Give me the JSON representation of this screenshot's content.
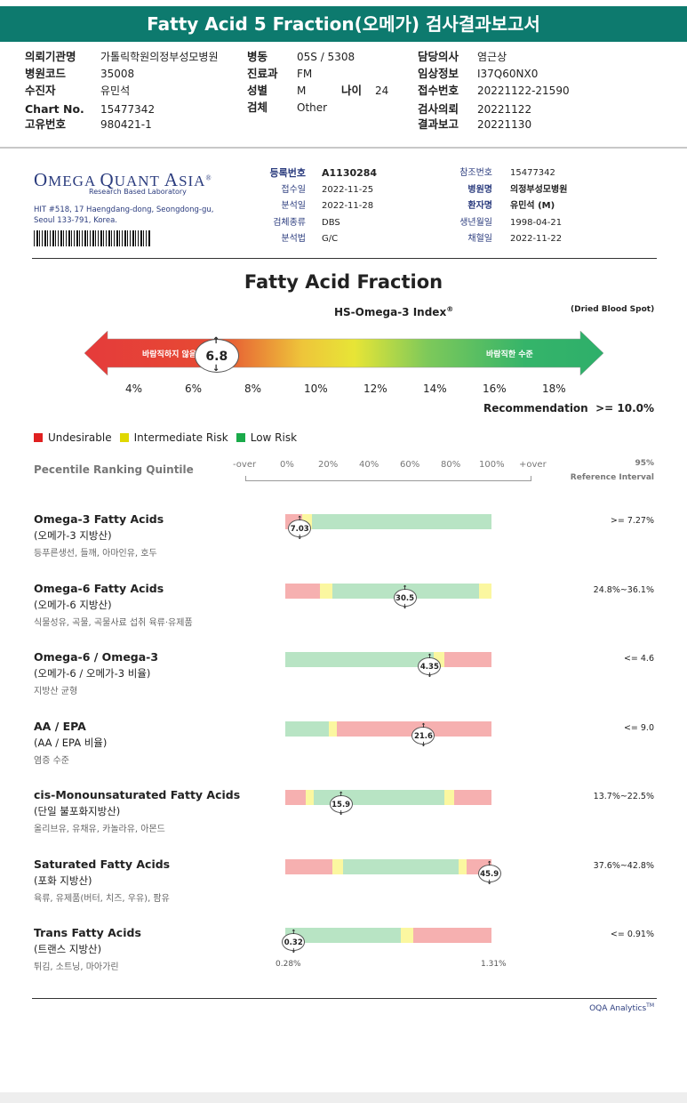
{
  "header": {
    "title": "Fatty Acid 5 Fraction(오메가) 검사결과보고서",
    "fields": [
      {
        "label": "의뢰기관명",
        "value": "가톨릭학원의정부성모병원"
      },
      {
        "label": "병원코드",
        "value": "35008"
      },
      {
        "label": "수진자",
        "value": "유민석"
      },
      {
        "label": "Chart No.",
        "value": "15477342"
      },
      {
        "label": "고유번호",
        "value": "980421-1"
      },
      {
        "label": "병동",
        "value": "05S / 5308"
      },
      {
        "label": "진료과",
        "value": "FM"
      },
      {
        "label": "성별",
        "value": "M"
      },
      {
        "label": "나이",
        "value": "24"
      },
      {
        "label": "검체",
        "value": "Other"
      },
      {
        "label": "담당의사",
        "value": "염근상"
      },
      {
        "label": "임상정보",
        "value": "I37Q60NX0"
      },
      {
        "label": "접수번호",
        "value": "20221122-21590"
      },
      {
        "label": "검사의뢰",
        "value": "20221122"
      },
      {
        "label": "결과보고",
        "value": "20221130"
      }
    ]
  },
  "lab": {
    "logo_a": "O",
    "logo_b": "MEGA ",
    "logo_c": "Q",
    "logo_d": "UANT ",
    "logo_e": "A",
    "logo_f": "SIA",
    "logo_reg": "®",
    "tagline": "Research Based Laboratory",
    "address": "HIT #518, 17 Haengdang-dong, Seongdong-gu, Seoul 133-791, Korea."
  },
  "meta_left": [
    {
      "label": "등록번호",
      "value": "A1130284"
    },
    {
      "label": "접수일",
      "value": "2022-11-25"
    },
    {
      "label": "분석일",
      "value": "2022-11-28"
    },
    {
      "label": "검체종류",
      "value": "DBS"
    },
    {
      "label": "분석법",
      "value": "G/C"
    }
  ],
  "meta_right": [
    {
      "label": "참조번호",
      "value": "15477342"
    },
    {
      "label": "병원명",
      "value": "의정부성모병원"
    },
    {
      "label": "환자명",
      "value": "유민석 (M)"
    },
    {
      "label": "생년월일",
      "value": "1998-04-21"
    },
    {
      "label": "채혈일",
      "value": "2022-11-22"
    }
  ],
  "report": {
    "title": "Fatty Acid Fraction",
    "index_name": "HS-Omega-3 Index",
    "index_reg": "®",
    "sample": "(Dried Blood Spot)",
    "gauge_left": "바람직하지 않음",
    "gauge_right": "바람직한 수준",
    "gauge_value": "6.8",
    "gauge_value_num": 6.8,
    "gauge_ticks": [
      "4%",
      "6%",
      "8%",
      "10%",
      "12%",
      "14%",
      "16%",
      "18%"
    ],
    "recommendation_label": "Recommendation",
    "recommendation_value": ">= 10.0%"
  },
  "legend": [
    {
      "label": "Undesirable",
      "color": "#e02020"
    },
    {
      "label": "Intermediate Risk",
      "color": "#e0d800"
    },
    {
      "label": "Low Risk",
      "color": "#1aaa4a"
    }
  ],
  "scale": {
    "heading": "Pecentile Ranking Quintile",
    "labels": [
      "-over",
      "0%",
      "20%",
      "40%",
      "60%",
      "80%",
      "100%",
      "+over"
    ],
    "ref_line1": "95%",
    "ref_line2": "Reference Interval"
  },
  "colors": {
    "red": "#f6b0b0",
    "yellow": "#fbf7a0",
    "green": "#b8e4c4"
  },
  "rows": [
    {
      "title": "Omega-3 Fatty Acids",
      "sub": "(오메가-3 지방산)",
      "note": "등푸른생선, 들깨, 아마인유, 호두",
      "ref": ">= 7.27%",
      "value": "7.03",
      "segments": [
        {
          "c": "red",
          "w": 0.08
        },
        {
          "c": "yellow",
          "w": 0.05
        },
        {
          "c": "green",
          "w": 0.87
        }
      ],
      "position": 0.07
    },
    {
      "title": "Omega-6 Fatty Acids",
      "sub": "(오메가-6 지방산)",
      "note": "식물성유, 곡물, 곡물사료 섭취 육류·유제품",
      "ref": "24.8%~36.1%",
      "value": "30.5",
      "segments": [
        {
          "c": "red",
          "w": 0.17
        },
        {
          "c": "yellow",
          "w": 0.06
        },
        {
          "c": "green",
          "w": 0.71
        },
        {
          "c": "yellow",
          "w": 0.06
        }
      ],
      "position": 0.58
    },
    {
      "title": "Omega-6 / Omega-3",
      "sub": "(오메가-6 / 오메가-3 비율)",
      "note": "지방산 균형",
      "ref": "<= 4.6",
      "value": "4.35",
      "segments": [
        {
          "c": "green",
          "w": 0.72
        },
        {
          "c": "yellow",
          "w": 0.05
        },
        {
          "c": "red",
          "w": 0.23
        }
      ],
      "position": 0.7
    },
    {
      "title": "AA / EPA",
      "sub": "(AA / EPA 비율)",
      "note": "염증 수준",
      "ref": "<= 9.0",
      "value": "21.6",
      "segments": [
        {
          "c": "green",
          "w": 0.21
        },
        {
          "c": "yellow",
          "w": 0.04
        },
        {
          "c": "red",
          "w": 0.75
        }
      ],
      "position": 0.67
    },
    {
      "title": "cis-Monounsaturated Fatty Acids",
      "sub": "(단일 불포화지방산)",
      "note": "올리브유, 유채유, 카놀라유, 아몬드",
      "ref": "13.7%~22.5%",
      "value": "15.9",
      "segments": [
        {
          "c": "red",
          "w": 0.1
        },
        {
          "c": "yellow",
          "w": 0.04
        },
        {
          "c": "green",
          "w": 0.63
        },
        {
          "c": "yellow",
          "w": 0.05
        },
        {
          "c": "red",
          "w": 0.18
        }
      ],
      "position": 0.27
    },
    {
      "title": "Saturated Fatty Acids",
      "sub": "(포화 지방산)",
      "note": "육류, 유제품(버터, 치즈, 우유), 팜유",
      "ref": "37.6%~42.8%",
      "value": "45.9",
      "segments": [
        {
          "c": "red",
          "w": 0.23
        },
        {
          "c": "yellow",
          "w": 0.05
        },
        {
          "c": "green",
          "w": 0.56
        },
        {
          "c": "yellow",
          "w": 0.04
        },
        {
          "c": "red",
          "w": 0.12
        }
      ],
      "position": 0.99
    },
    {
      "title": "Trans Fatty Acids",
      "sub": "(트랜스 지방산)",
      "note": "튀김, 소트닝, 마아가린",
      "ref": "<= 0.91%",
      "value": "0.32",
      "segments": [
        {
          "c": "green",
          "w": 0.56
        },
        {
          "c": "yellow",
          "w": 0.06
        },
        {
          "c": "red",
          "w": 0.38
        }
      ],
      "position": 0.04
    }
  ],
  "trans_scale": {
    "min": "0.28%",
    "max": "1.31%"
  },
  "footer": {
    "brand": "OQA Analytics",
    "tm": "TM"
  }
}
